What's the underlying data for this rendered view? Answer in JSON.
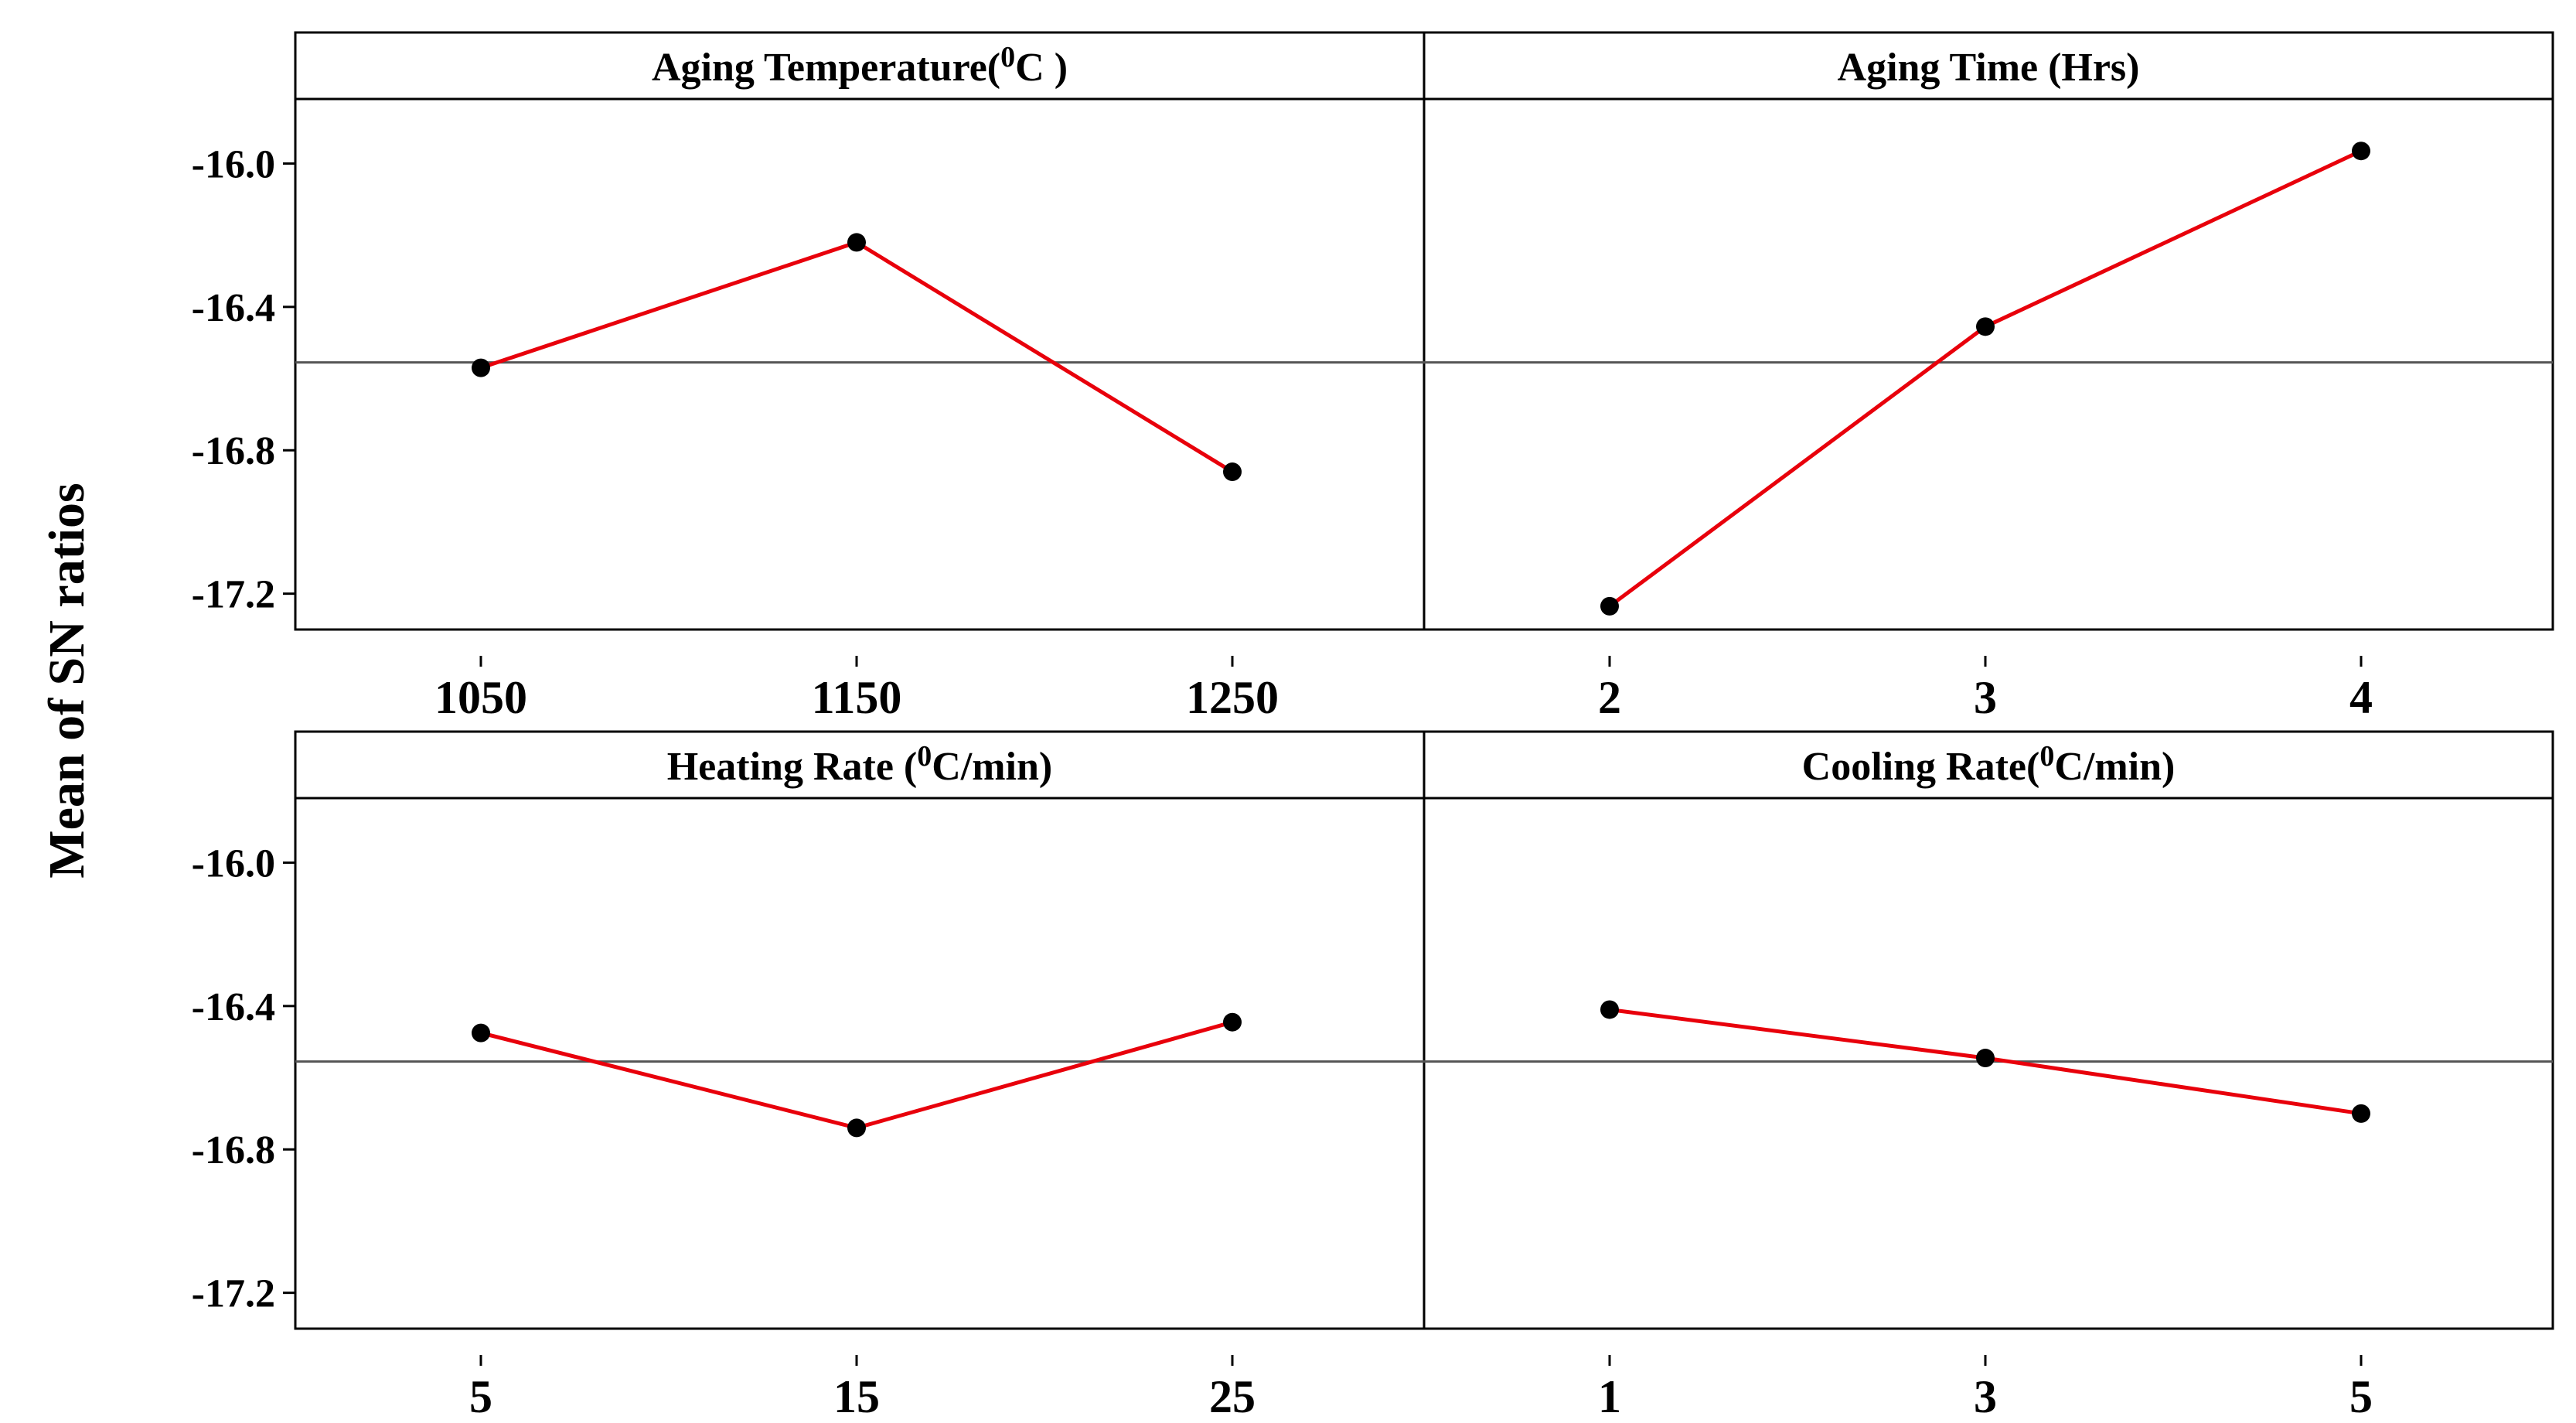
{
  "chart_data": {
    "type": "line",
    "y_axis_title": "Mean of SN ratios",
    "ylim": [
      -17.3,
      -15.82
    ],
    "y_ticks": [
      -16.0,
      -16.4,
      -16.8,
      -17.2
    ],
    "y_tick_labels": [
      "-16.0",
      "-16.4",
      "-16.8",
      "-17.2"
    ],
    "overall_mean": -16.555,
    "panels": [
      {
        "title_prefix": "Aging Temperature",
        "title_open": "(",
        "title_sup": "0",
        "title_unit": "C",
        "title_close": " )",
        "categories": [
          "1050",
          "1150",
          "1250"
        ],
        "values": [
          -16.57,
          -16.22,
          -16.86
        ]
      },
      {
        "title_prefix": "Aging Time (Hrs)",
        "title_open": "",
        "title_sup": "",
        "title_unit": "",
        "title_close": "",
        "categories": [
          "2",
          "3",
          "4"
        ],
        "values": [
          -17.235,
          -16.455,
          -15.965
        ]
      },
      {
        "title_prefix": "Heating Rate ",
        "title_open": "(",
        "title_sup": "0",
        "title_unit": "C/min",
        "title_close": ")",
        "categories": [
          "5",
          "15",
          "25"
        ],
        "values": [
          -16.475,
          -16.74,
          -16.445
        ]
      },
      {
        "title_prefix": "Cooling Rate",
        "title_open": "(",
        "title_sup": "0",
        "title_unit": "C/min",
        "title_close": ")",
        "categories": [
          "1",
          "3",
          "5"
        ],
        "values": [
          -16.41,
          -16.545,
          -16.7
        ]
      }
    ]
  },
  "colors": {
    "series": "#e8000b",
    "point": "#000000",
    "mean_line": "#555555"
  }
}
